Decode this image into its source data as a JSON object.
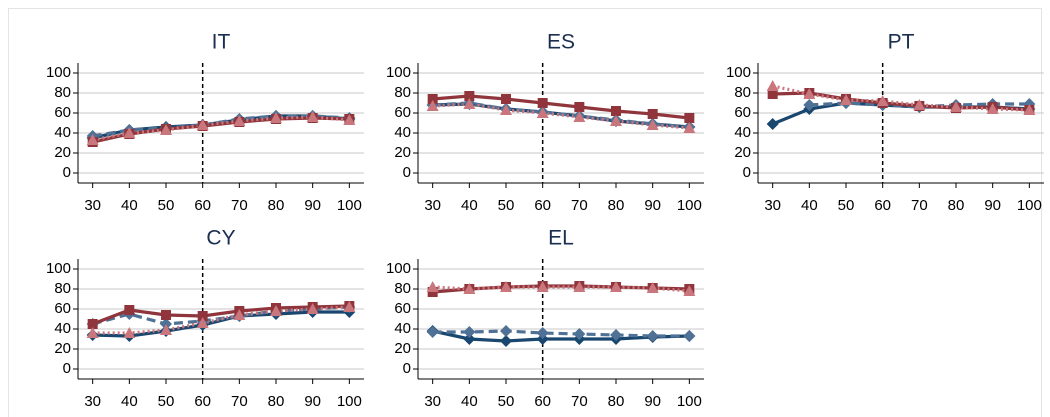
{
  "chart_data": [
    {
      "type": "line",
      "title": "IT",
      "x": [
        30,
        40,
        50,
        60,
        70,
        80,
        90,
        100
      ],
      "xlim": [
        26,
        104
      ],
      "xticks": [
        30,
        40,
        50,
        60,
        70,
        80,
        90,
        100
      ],
      "ylim": [
        -10,
        110
      ],
      "yticks": [
        0,
        20,
        40,
        60,
        80,
        100
      ],
      "grid": true,
      "reference_line_x": 60,
      "series": [
        {
          "color": "#1a476f",
          "dash": "solid",
          "marker": "diamond",
          "values": [
            35,
            43,
            46,
            48,
            53,
            57,
            57,
            54
          ]
        },
        {
          "color": "#4f7196",
          "dash": "dashed",
          "marker": "diamond",
          "values": [
            37,
            43,
            45,
            48,
            54,
            57,
            57,
            55
          ]
        },
        {
          "color": "#90353b",
          "dash": "solid",
          "marker": "square",
          "values": [
            31,
            39,
            44,
            47,
            51,
            54,
            55,
            54
          ]
        },
        {
          "color": "#c9767c",
          "dash": "dotted",
          "marker": "triangle",
          "values": [
            33,
            40,
            43,
            48,
            52,
            55,
            56,
            53
          ]
        }
      ]
    },
    {
      "type": "line",
      "title": "ES",
      "x": [
        30,
        40,
        50,
        60,
        70,
        80,
        90,
        100
      ],
      "xlim": [
        26,
        104
      ],
      "xticks": [
        30,
        40,
        50,
        60,
        70,
        80,
        90,
        100
      ],
      "ylim": [
        -10,
        110
      ],
      "yticks": [
        0,
        20,
        40,
        60,
        80,
        100
      ],
      "grid": true,
      "reference_line_x": 60,
      "series": [
        {
          "color": "#1a476f",
          "dash": "solid",
          "marker": "diamond",
          "values": [
            68,
            69,
            64,
            61,
            57,
            52,
            49,
            46
          ]
        },
        {
          "color": "#4f7196",
          "dash": "dashed",
          "marker": "diamond",
          "values": [
            68,
            70,
            64,
            61,
            57,
            53,
            49,
            46
          ]
        },
        {
          "color": "#90353b",
          "dash": "solid",
          "marker": "square",
          "values": [
            74,
            77,
            74,
            70,
            66,
            62,
            59,
            55
          ]
        },
        {
          "color": "#c9767c",
          "dash": "dotted",
          "marker": "triangle",
          "values": [
            67,
            69,
            63,
            60,
            56,
            52,
            48,
            45
          ]
        }
      ]
    },
    {
      "type": "line",
      "title": "PT",
      "x": [
        30,
        40,
        50,
        60,
        70,
        80,
        90,
        100
      ],
      "xlim": [
        26,
        104
      ],
      "xticks": [
        30,
        40,
        50,
        60,
        70,
        80,
        90,
        100
      ],
      "ylim": [
        -10,
        110
      ],
      "yticks": [
        0,
        20,
        40,
        60,
        80,
        100
      ],
      "grid": true,
      "reference_line_x": 60,
      "series": [
        {
          "color": "#1a476f",
          "dash": "solid",
          "marker": "diamond",
          "values": [
            49,
            64,
            70,
            68,
            66,
            66,
            66,
            64
          ]
        },
        {
          "color": "#4f7196",
          "dash": "dashed",
          "marker": "diamond",
          "values": [
            null,
            68,
            70,
            68,
            66,
            68,
            69,
            69
          ]
        },
        {
          "color": "#90353b",
          "dash": "solid",
          "marker": "square",
          "values": [
            79,
            80,
            74,
            70,
            67,
            65,
            66,
            63
          ]
        },
        {
          "color": "#c9767c",
          "dash": "dotted",
          "marker": "triangle",
          "values": [
            87,
            79,
            73,
            72,
            68,
            66,
            64,
            63
          ]
        }
      ]
    },
    {
      "type": "line",
      "title": "CY",
      "x": [
        30,
        40,
        50,
        60,
        70,
        80,
        90,
        100
      ],
      "xlim": [
        26,
        104
      ],
      "xticks": [
        30,
        40,
        50,
        60,
        70,
        80,
        90,
        100
      ],
      "ylim": [
        -10,
        110
      ],
      "yticks": [
        0,
        20,
        40,
        60,
        80,
        100
      ],
      "grid": true,
      "reference_line_x": 60,
      "series": [
        {
          "color": "#1a476f",
          "dash": "solid",
          "marker": "diamond",
          "values": [
            34,
            33,
            38,
            44,
            53,
            55,
            57,
            57
          ]
        },
        {
          "color": "#4f7196",
          "dash": "dashed",
          "marker": "diamond",
          "values": [
            45,
            55,
            45,
            48,
            53,
            58,
            60,
            62
          ]
        },
        {
          "color": "#90353b",
          "dash": "solid",
          "marker": "square",
          "values": [
            45,
            59,
            54,
            53,
            58,
            61,
            62,
            63
          ]
        },
        {
          "color": "#c9767c",
          "dash": "dotted",
          "marker": "triangle",
          "values": [
            36,
            36,
            39,
            46,
            54,
            58,
            60,
            62
          ]
        }
      ]
    },
    {
      "type": "line",
      "title": "EL",
      "x": [
        30,
        40,
        50,
        60,
        70,
        80,
        90,
        100
      ],
      "xlim": [
        26,
        104
      ],
      "xticks": [
        30,
        40,
        50,
        60,
        70,
        80,
        90,
        100
      ],
      "ylim": [
        -10,
        110
      ],
      "yticks": [
        0,
        20,
        40,
        60,
        80,
        100
      ],
      "grid": true,
      "reference_line_x": 60,
      "series": [
        {
          "color": "#1a476f",
          "dash": "solid",
          "marker": "diamond",
          "values": [
            38,
            30,
            28,
            30,
            30,
            30,
            32,
            33
          ]
        },
        {
          "color": "#4f7196",
          "dash": "dashed",
          "marker": "diamond",
          "values": [
            37,
            37,
            38,
            36,
            35,
            34,
            33,
            33
          ]
        },
        {
          "color": "#90353b",
          "dash": "solid",
          "marker": "square",
          "values": [
            77,
            80,
            82,
            83,
            83,
            82,
            81,
            80
          ]
        },
        {
          "color": "#c9767c",
          "dash": "dotted",
          "marker": "triangle",
          "values": [
            82,
            80,
            82,
            82,
            82,
            82,
            81,
            78
          ]
        }
      ]
    }
  ]
}
